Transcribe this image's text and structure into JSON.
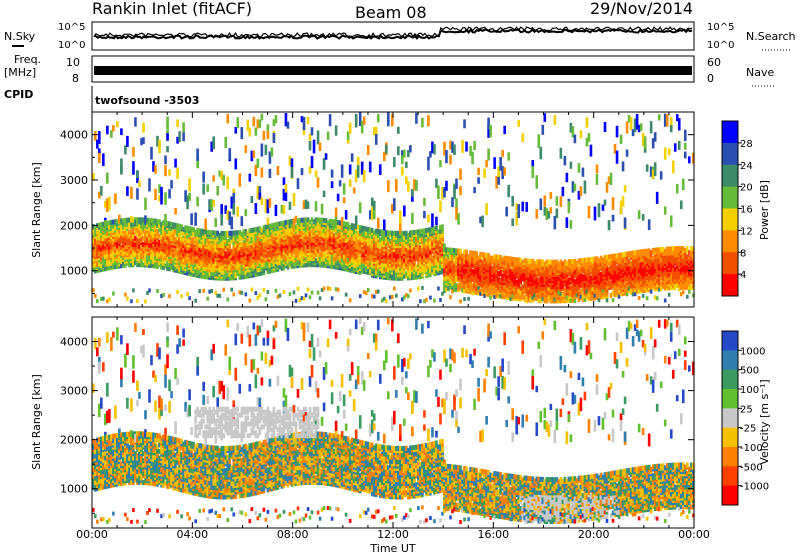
{
  "header": {
    "station": "Rankin Inlet (fitACF)",
    "beam": "Beam 08",
    "date": "29/Nov/2014"
  },
  "noise_panel": {
    "left_label": "N.Sky",
    "right_label": "N.Search",
    "left_ticks": [
      "10^5",
      "10^0"
    ],
    "right_ticks": [
      "10^5",
      "10^0"
    ]
  },
  "freq_panel": {
    "label_top": "Freq.",
    "label_bottom": "[MHz]",
    "left_ticks": [
      "10",
      "8"
    ],
    "right_ticks": [
      "60",
      "0"
    ],
    "right_label": "Nave"
  },
  "cpid_panel": {
    "label": "CPID",
    "program": "twofsound  -3503"
  },
  "chart_data": [
    {
      "type": "heatmap",
      "name": "power",
      "ylabel": "Slant Range [km]",
      "ylim": [
        200,
        4500
      ],
      "yticks": [
        "1000",
        "2000",
        "3000",
        "4000"
      ],
      "colorbar_label": "Power [dB]",
      "colorbar_ticks": [
        "4",
        "8",
        "12",
        "16",
        "20",
        "24",
        "28"
      ],
      "colorbar_colors": [
        "#0000ff",
        "#2a4fb0",
        "#3d8a6a",
        "#66bb3a",
        "#f5d000",
        "#ff8c00",
        "#f25000",
        "#ff0000"
      ]
    },
    {
      "type": "heatmap",
      "name": "velocity",
      "ylabel": "Slant Range [km]",
      "ylim": [
        200,
        4500
      ],
      "yticks": [
        "1000",
        "2000",
        "3000",
        "4000"
      ],
      "colorbar_label": "Velocity  [m s⁻¹]",
      "colorbar_ticks": [
        "1000",
        "500",
        "100",
        "25",
        "-25",
        "-100",
        "-500",
        "-1000"
      ],
      "colorbar_colors": [
        "#2448c8",
        "#2e7fb0",
        "#3a9a60",
        "#62c030",
        "#c8c8c8",
        "#f5c000",
        "#ff8000",
        "#ff4000",
        "#ff0000"
      ]
    }
  ],
  "time_axis": {
    "label": "Time UT",
    "ticks": [
      "00:00",
      "04:00",
      "08:00",
      "12:00",
      "16:00",
      "20:00",
      "00:00"
    ]
  }
}
